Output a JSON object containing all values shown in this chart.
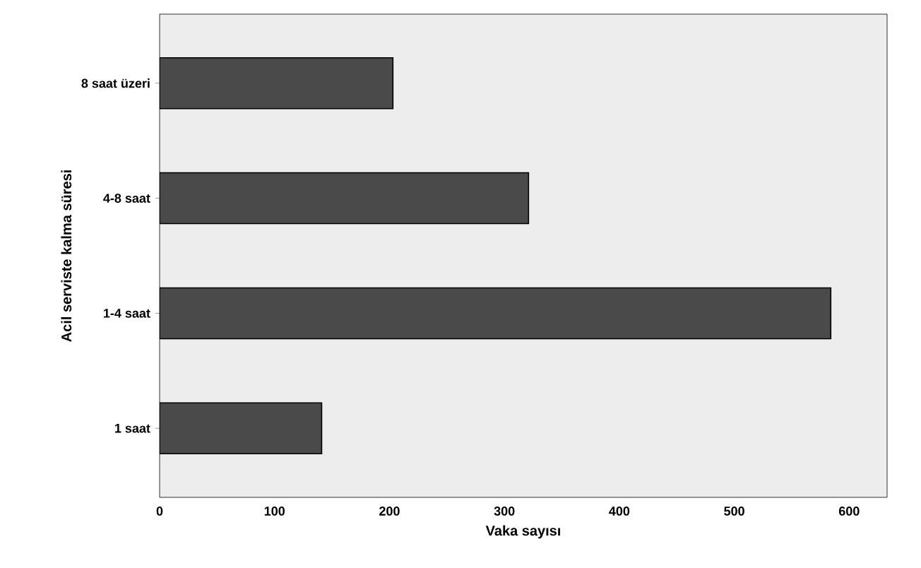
{
  "chart_data": {
    "type": "bar",
    "orientation": "horizontal",
    "xlabel": "Vaka sayısı",
    "ylabel": "Acil serviste kalma süresi",
    "categories": [
      "8 saat üzeri",
      "4-8 saat",
      "1-4 saat",
      "1 saat"
    ],
    "values": [
      203,
      321,
      584,
      141
    ],
    "color": "#4a4a4a",
    "xlim": [
      0,
      633
    ],
    "xticks": [
      0,
      100,
      200,
      300,
      400,
      500,
      600
    ]
  }
}
